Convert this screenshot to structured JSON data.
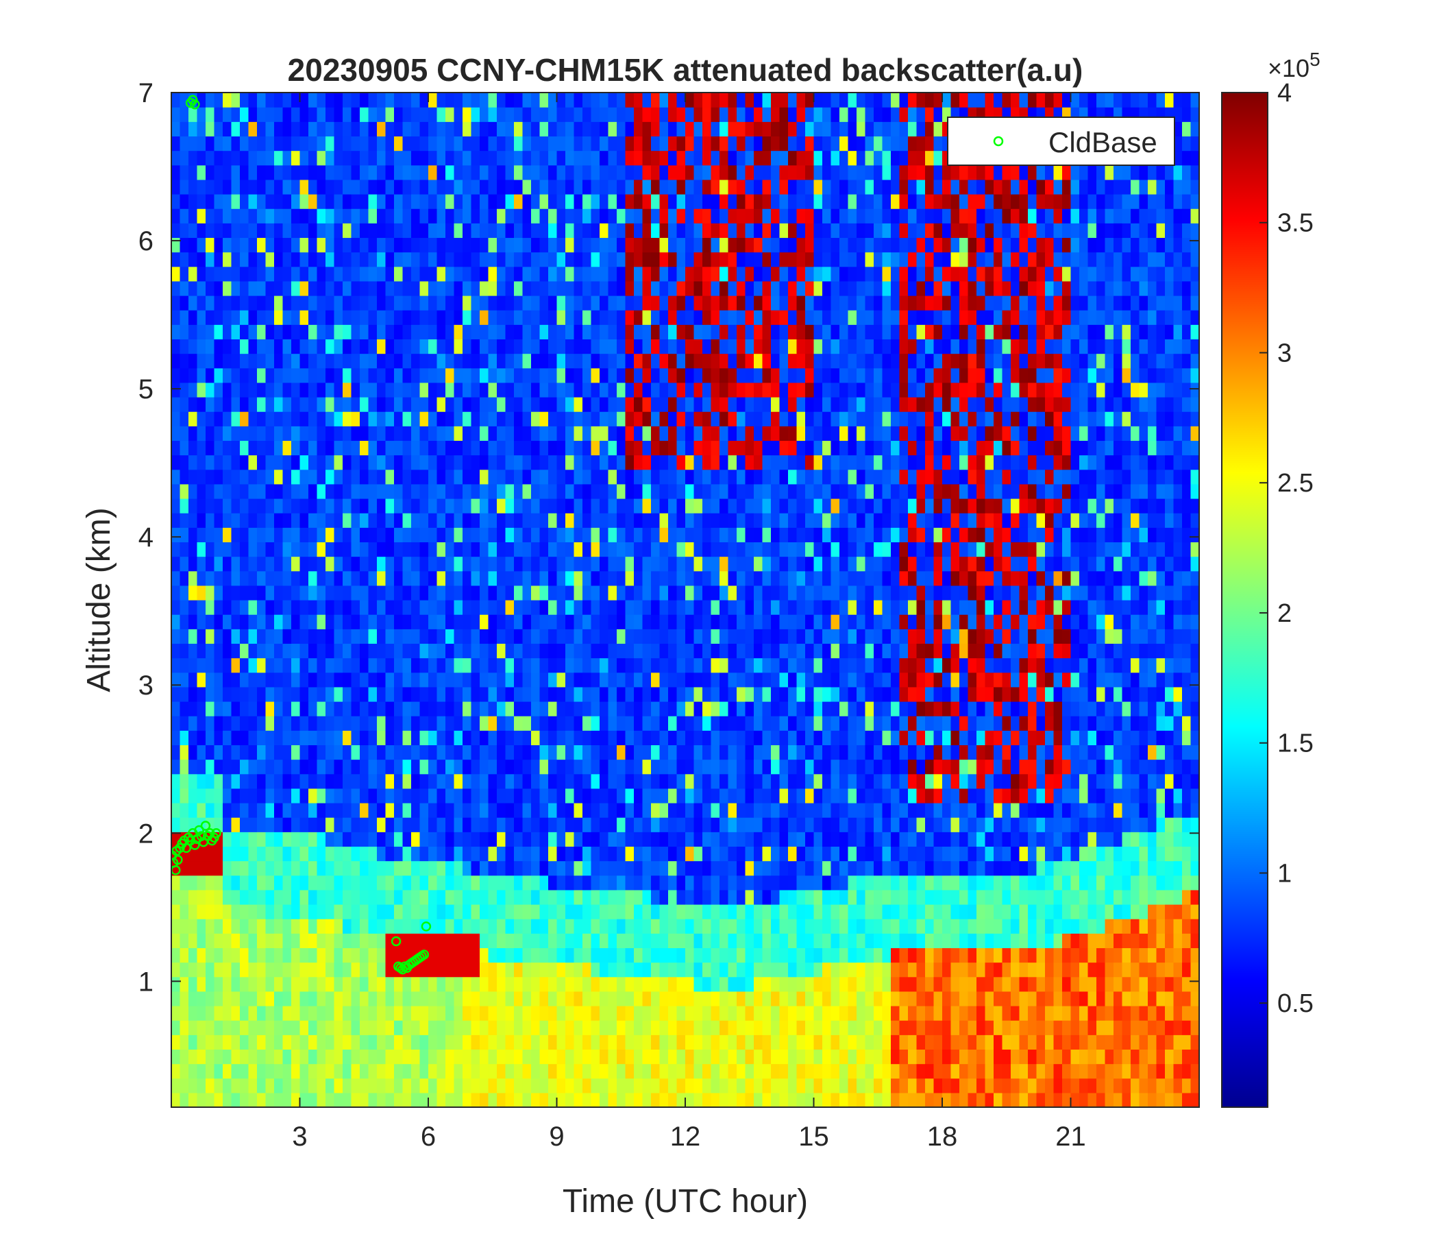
{
  "figure": {
    "title": "20230905 CCNY-CHM15K attenuated backscatter(a.u)"
  },
  "chart_data": {
    "type": "heatmap",
    "title": "20230905 CCNY-CHM15K attenuated backscatter(a.u)",
    "xlabel": "Time (UTC hour)",
    "ylabel": "Altitude (km)",
    "xlim": [
      0,
      24
    ],
    "ylim": [
      0.15,
      7
    ],
    "xticks": [
      3,
      6,
      9,
      12,
      15,
      18,
      21
    ],
    "yticks": [
      1,
      2,
      3,
      4,
      5,
      6,
      7
    ],
    "colormap": "jet",
    "colorbar": {
      "range": [
        10000,
        400000
      ],
      "ticks": [
        0.5,
        1,
        1.5,
        2,
        2.5,
        3,
        3.5,
        4
      ],
      "multiplier_label": "×10",
      "multiplier_exponent": "5"
    },
    "legend": {
      "location": "top-right",
      "entries": [
        {
          "label": "CldBase",
          "marker": "circle",
          "color": "#00ff00"
        }
      ]
    },
    "series": [
      {
        "name": "CldBase",
        "type": "scatter",
        "x": [
          0.02,
          0.05,
          0.1,
          0.12,
          0.15,
          0.2,
          0.25,
          0.3,
          0.35,
          0.4,
          0.45,
          0.5,
          0.55,
          0.6,
          0.65,
          0.7,
          0.75,
          0.8,
          0.85,
          0.9,
          0.95,
          1.0,
          1.05,
          0.45,
          0.5,
          0.55,
          5.25,
          5.3,
          5.35,
          5.4,
          5.45,
          5.5,
          5.55,
          5.6,
          5.65,
          5.7,
          5.75,
          5.8,
          5.85,
          5.9,
          5.95
        ],
        "y": [
          1.85,
          1.8,
          1.75,
          1.88,
          1.82,
          1.9,
          1.93,
          1.95,
          1.9,
          1.97,
          1.95,
          2.0,
          1.92,
          1.96,
          2.02,
          1.98,
          1.94,
          2.05,
          1.98,
          2.0,
          1.95,
          1.97,
          2.0,
          6.93,
          6.95,
          6.92,
          1.27,
          1.1,
          1.09,
          1.08,
          1.1,
          1.09,
          1.11,
          1.12,
          1.13,
          1.14,
          1.15,
          1.16,
          1.17,
          1.18,
          1.37
        ]
      }
    ]
  }
}
